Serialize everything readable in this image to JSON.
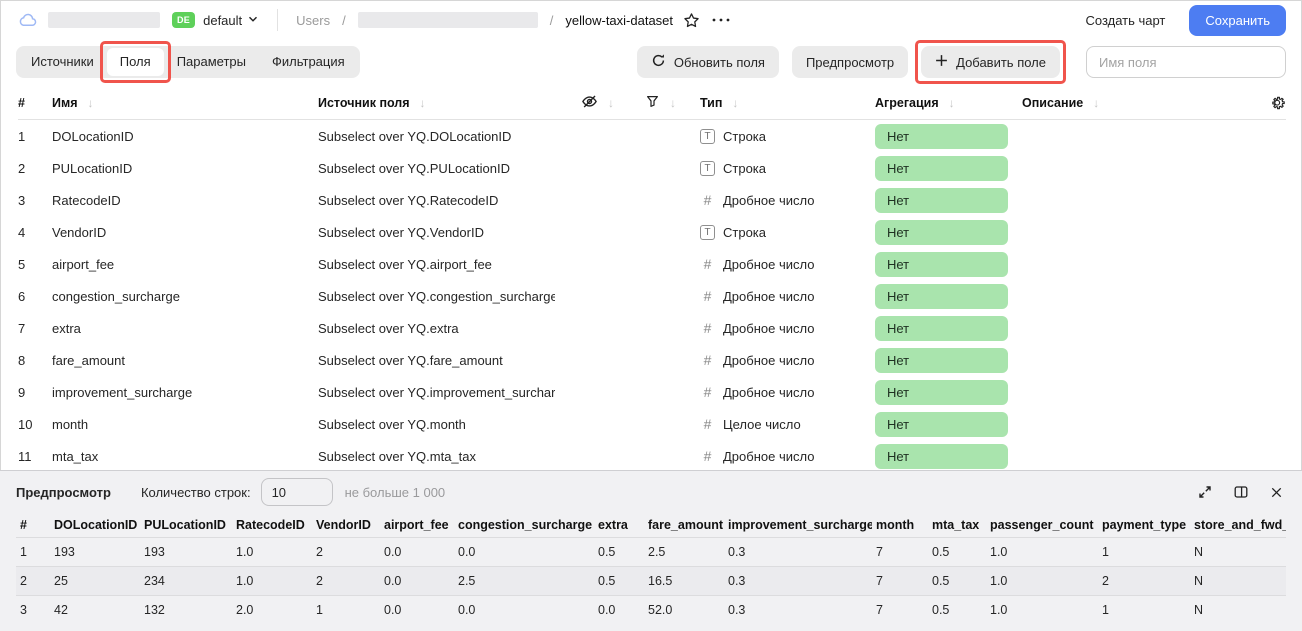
{
  "colors": {
    "accent_blue": "#4d7df2",
    "badge_green": "#a9e4ad",
    "annotation_red": "#f0544c",
    "org_badge_green": "#5ed05a"
  },
  "header": {
    "org_badge": "DE",
    "workspace": "default",
    "breadcrumb_root": "Users",
    "breadcrumb_sep": "/",
    "dataset_name": "yellow-taxi-dataset",
    "create_chart_label": "Создать чарт",
    "save_label": "Сохранить"
  },
  "tabs": [
    {
      "label": "Источники"
    },
    {
      "label": "Поля"
    },
    {
      "label": "Параметры"
    },
    {
      "label": "Фильтрация"
    }
  ],
  "toolbar": {
    "refresh_label": "Обновить поля",
    "preview_label": "Предпросмотр",
    "add_field_label": "Добавить поле",
    "name_placeholder": "Имя поля"
  },
  "fields_table": {
    "headers": {
      "num": "#",
      "name": "Имя",
      "source": "Источник поля",
      "type": "Тип",
      "aggregation": "Агрегация",
      "description": "Описание"
    },
    "rows": [
      {
        "num": 1,
        "name": "DOLocationID",
        "source": "Subselect over YQ.DOLocationID",
        "type_icon": "string",
        "type": "Строка",
        "aggregation": "Нет"
      },
      {
        "num": 2,
        "name": "PULocationID",
        "source": "Subselect over YQ.PULocationID",
        "type_icon": "string",
        "type": "Строка",
        "aggregation": "Нет"
      },
      {
        "num": 3,
        "name": "RatecodeID",
        "source": "Subselect over YQ.RatecodeID",
        "type_icon": "number",
        "type": "Дробное число",
        "aggregation": "Нет"
      },
      {
        "num": 4,
        "name": "VendorID",
        "source": "Subselect over YQ.VendorID",
        "type_icon": "string",
        "type": "Строка",
        "aggregation": "Нет"
      },
      {
        "num": 5,
        "name": "airport_fee",
        "source": "Subselect over YQ.airport_fee",
        "type_icon": "number",
        "type": "Дробное число",
        "aggregation": "Нет"
      },
      {
        "num": 6,
        "name": "congestion_surcharge",
        "source": "Subselect over YQ.congestion_surcharge",
        "type_icon": "number",
        "type": "Дробное число",
        "aggregation": "Нет"
      },
      {
        "num": 7,
        "name": "extra",
        "source": "Subselect over YQ.extra",
        "type_icon": "number",
        "type": "Дробное число",
        "aggregation": "Нет"
      },
      {
        "num": 8,
        "name": "fare_amount",
        "source": "Subselect over YQ.fare_amount",
        "type_icon": "number",
        "type": "Дробное число",
        "aggregation": "Нет"
      },
      {
        "num": 9,
        "name": "improvement_surcharge",
        "source": "Subselect over YQ.improvement_surcharge",
        "type_icon": "number",
        "type": "Дробное число",
        "aggregation": "Нет"
      },
      {
        "num": 10,
        "name": "month",
        "source": "Subselect over YQ.month",
        "type_icon": "number",
        "type": "Целое число",
        "aggregation": "Нет"
      },
      {
        "num": 11,
        "name": "mta_tax",
        "source": "Subselect over YQ.mta_tax",
        "type_icon": "number",
        "type": "Дробное число",
        "aggregation": "Нет"
      }
    ]
  },
  "preview": {
    "title": "Предпросмотр",
    "rows_label": "Количество строк:",
    "rows_value": "10",
    "rows_hint": "не больше 1 000",
    "table": {
      "headers": [
        "#",
        "DOLocationID",
        "PULocationID",
        "RatecodeID",
        "VendorID",
        "airport_fee",
        "congestion_surcharge",
        "extra",
        "fare_amount",
        "improvement_surcharge",
        "month",
        "mta_tax",
        "passenger_count",
        "payment_type",
        "store_and_fwd_flag"
      ],
      "rows": [
        [
          "1",
          "193",
          "193",
          "1.0",
          "2",
          "0.0",
          "0.0",
          "0.5",
          "2.5",
          "0.3",
          "7",
          "0.5",
          "1.0",
          "1",
          "N"
        ],
        [
          "2",
          "25",
          "234",
          "1.0",
          "2",
          "0.0",
          "2.5",
          "0.5",
          "16.5",
          "0.3",
          "7",
          "0.5",
          "1.0",
          "2",
          "N"
        ],
        [
          "3",
          "42",
          "132",
          "2.0",
          "1",
          "0.0",
          "0.0",
          "0.0",
          "52.0",
          "0.3",
          "7",
          "0.5",
          "1.0",
          "1",
          "N"
        ]
      ]
    }
  }
}
